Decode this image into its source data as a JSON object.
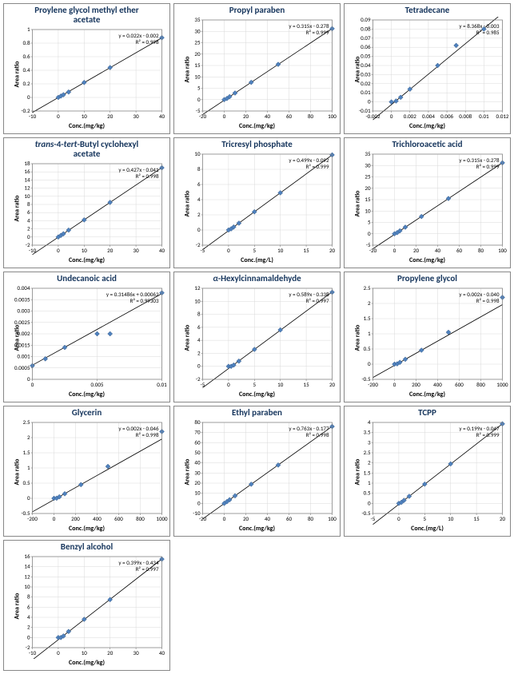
{
  "global": {
    "marker_color": "#4f81bd",
    "marker_border": "#385d8a",
    "line_color": "#000000",
    "axis_color": "#808080",
    "grid_color": "#d9d9d9",
    "tick_font_size": 7,
    "title_font_size": 11,
    "label_font_size": 8,
    "ylabel": "Area ratio",
    "marker_size": 3
  },
  "charts": [
    {
      "title": "Proylene glycol methyl ether\nacetate",
      "xlabel": "Conc.(mg/kg)",
      "equation": "y = 0.022x - 0.002",
      "r2": "R² = 0.998",
      "slope": 0.022,
      "intercept": -0.002,
      "xlim": [
        -10,
        40
      ],
      "ylim": [
        -0.2,
        1
      ],
      "xticks": [
        -10,
        0,
        10,
        20,
        30,
        40
      ],
      "yticks": [
        -0.2,
        0,
        0.2,
        0.4,
        0.6,
        0.8,
        1
      ],
      "points_x": [
        0,
        1,
        2,
        4,
        10,
        20,
        40
      ],
      "points_y": [
        0,
        0.02,
        0.04,
        0.08,
        0.22,
        0.44,
        0.88
      ]
    },
    {
      "title": "Propyl paraben",
      "xlabel": "Conc.(mg/kg)",
      "equation": "y = 0.315x - 0.278",
      "r2": "R² = 0.999",
      "slope": 0.315,
      "intercept": -0.278,
      "xlim": [
        -20,
        100
      ],
      "ylim": [
        -5,
        35
      ],
      "xticks": [
        -20,
        0,
        20,
        40,
        60,
        80,
        100
      ],
      "yticks": [
        -5,
        0,
        5,
        10,
        15,
        20,
        25,
        30,
        35
      ],
      "points_x": [
        0,
        2.5,
        5,
        10,
        25,
        50,
        100
      ],
      "points_y": [
        0,
        0.5,
        1.3,
        2.9,
        7.6,
        15.5,
        31.2
      ]
    },
    {
      "title": "Tetradecane",
      "xlabel": "Conc.(mg/kg)",
      "equation": "y = 8.368x - 0.003",
      "r2": "R² = 0.985",
      "slope": 8.368,
      "intercept": -0.003,
      "xlim": [
        -0.002,
        0.012
      ],
      "ylim": [
        -0.01,
        0.09
      ],
      "xticks": [
        -0.002,
        0,
        0.002,
        0.004,
        0.006,
        0.008,
        0.01,
        0.012
      ],
      "yticks": [
        -0.01,
        0,
        0.01,
        0.02,
        0.03,
        0.04,
        0.05,
        0.06,
        0.07,
        0.08,
        0.09
      ],
      "points_x": [
        0,
        0.0005,
        0.001,
        0.002,
        0.005,
        0.007,
        0.01
      ],
      "points_y": [
        0,
        0.001,
        0.005,
        0.014,
        0.04,
        0.062,
        0.08
      ]
    },
    {
      "title_html": "<span class='ital'>trans</span>-4-<span class='ital'>tert</span>-Butyl cyclohexyl\nacetate",
      "xlabel": "Conc.(mg/kg)",
      "equation": "y = 0.427x - 0.041",
      "r2": "R² = 0.998",
      "slope": 0.427,
      "intercept": -0.041,
      "xlim": [
        -10,
        40
      ],
      "ylim": [
        -2,
        18
      ],
      "xticks": [
        -10,
        0,
        10,
        20,
        30,
        40
      ],
      "yticks": [
        -2,
        0,
        2,
        4,
        6,
        8,
        10,
        12,
        14,
        16,
        18
      ],
      "points_x": [
        0,
        1,
        2,
        4,
        10,
        20,
        40
      ],
      "points_y": [
        0,
        0.4,
        0.8,
        1.7,
        4.2,
        8.5,
        17
      ]
    },
    {
      "title": "Tricresyl phosphate",
      "xlabel": "Conc.(mg/L)",
      "equation": "y = 0.499x - 0.092",
      "r2": "R² = 0.999",
      "slope": 0.499,
      "intercept": -0.092,
      "xlim": [
        -5,
        20
      ],
      "ylim": [
        -2,
        10
      ],
      "xticks": [
        -5,
        0,
        5,
        10,
        15,
        20
      ],
      "yticks": [
        -2,
        0,
        2,
        4,
        6,
        8,
        10
      ],
      "points_x": [
        0,
        0.5,
        1,
        2,
        5,
        10,
        20
      ],
      "points_y": [
        0,
        0.15,
        0.4,
        0.9,
        2.4,
        4.9,
        9.9
      ]
    },
    {
      "title": "Trichloroacetic acid",
      "xlabel": "Conc.(mg/kg)",
      "equation": "y = 0.315x - 0.278",
      "r2": "R² = 0.999",
      "slope": 0.315,
      "intercept": -0.278,
      "xlim": [
        -20,
        100
      ],
      "ylim": [
        -5,
        35
      ],
      "xticks": [
        -20,
        0,
        20,
        40,
        60,
        80,
        100
      ],
      "yticks": [
        -5,
        0,
        5,
        10,
        15,
        20,
        25,
        30,
        35
      ],
      "points_x": [
        0,
        2.5,
        5,
        10,
        25,
        50,
        100
      ],
      "points_y": [
        0,
        0.5,
        1.3,
        2.9,
        7.6,
        15.5,
        31.2
      ]
    },
    {
      "title": "Undecanoic acid",
      "xlabel": "Conc.(mg/kg)",
      "equation": "y = 0.31486x + 0.00062",
      "r2": "R² = 0.99303",
      "slope": 0.31486,
      "intercept": 0.00062,
      "xlim": [
        0,
        0.01
      ],
      "ylim": [
        0,
        0.004
      ],
      "xticks": [
        0,
        0.005,
        0.01
      ],
      "yticks": [
        0,
        0.0005,
        0.001,
        0.0015,
        0.002,
        0.0025,
        0.003,
        0.0035,
        0.004,
        0.0045
      ],
      "points_x": [
        0,
        0.001,
        0.0025,
        0.005,
        0.006,
        0.01
      ],
      "points_y": [
        0.0006,
        0.0009,
        0.0014,
        0.002,
        0.002,
        0.0038
      ]
    },
    {
      "title_html": "<span class='ital'>α</span>-Hexylcinnamaldehyde",
      "xlabel": "Conc.(mg/kg)",
      "equation": "y = 0.589x - 0.338",
      "r2": "R² = 0.997",
      "slope": 0.589,
      "intercept": -0.338,
      "xlim": [
        -5,
        20
      ],
      "ylim": [
        -2,
        12
      ],
      "xticks": [
        -5,
        0,
        5,
        10,
        15,
        20
      ],
      "yticks": [
        -2,
        0,
        2,
        4,
        6,
        8,
        10,
        12,
        14
      ],
      "points_x": [
        0,
        0.5,
        1,
        2,
        5,
        10,
        20
      ],
      "points_y": [
        0,
        0,
        0.2,
        0.8,
        2.6,
        5.6,
        11.4
      ]
    },
    {
      "title": "Propylene glycol",
      "xlabel": "Conc.(mg/kg)",
      "equation": "y = 0.002x - 0.040",
      "r2": "R² = 0.998",
      "slope": 0.002,
      "intercept": -0.04,
      "xlim": [
        -200,
        1000
      ],
      "ylim": [
        -0.5,
        2.5
      ],
      "xticks": [
        -200,
        0,
        200,
        400,
        600,
        800,
        1000
      ],
      "yticks": [
        -0.5,
        0,
        0.5,
        1,
        1.5,
        2,
        2.5
      ],
      "points_x": [
        0,
        25,
        50,
        100,
        250,
        500,
        1000
      ],
      "points_y": [
        0,
        0.01,
        0.06,
        0.16,
        0.46,
        1.05,
        2.2
      ]
    },
    {
      "title": "Glycerin",
      "xlabel": "Conc.(mg/kg)",
      "equation": "y = 0.002x - 0.046",
      "r2": "R² = 0.998",
      "slope": 0.002,
      "intercept": -0.046,
      "xlim": [
        -200,
        1000
      ],
      "ylim": [
        -0.5,
        2.5
      ],
      "xticks": [
        -200,
        0,
        200,
        400,
        600,
        800,
        1000
      ],
      "yticks": [
        -0.5,
        0,
        0.5,
        1,
        1.5,
        2,
        2.5
      ],
      "points_x": [
        0,
        25,
        50,
        100,
        250,
        500,
        1000
      ],
      "points_y": [
        0,
        0.004,
        0.05,
        0.15,
        0.45,
        1.05,
        2.2
      ]
    },
    {
      "title": "Ethyl paraben",
      "xlabel": "Conc.(mg/kg)",
      "equation": "y = 0.763x - 0.177",
      "r2": "R² = 0.998",
      "slope": 0.763,
      "intercept": -0.177,
      "xlim": [
        -20,
        100
      ],
      "ylim": [
        -10,
        80
      ],
      "xticks": [
        -20,
        0,
        20,
        40,
        60,
        80,
        100
      ],
      "yticks": [
        -10,
        0,
        10,
        20,
        30,
        40,
        50,
        60,
        70,
        80,
        90
      ],
      "points_x": [
        0,
        2.5,
        5,
        10,
        25,
        50,
        100
      ],
      "points_y": [
        0,
        1.7,
        3.6,
        7.5,
        18.9,
        37.9,
        76
      ]
    },
    {
      "title": "TCPP",
      "xlabel": "Conc.(mg/L)",
      "equation": "y = 0.199x - 0.047",
      "r2": "R² = 0.999",
      "slope": 0.199,
      "intercept": -0.047,
      "xlim": [
        -5,
        20
      ],
      "ylim": [
        -0.5,
        4.0
      ],
      "xticks": [
        -5,
        0,
        5,
        10,
        15,
        20
      ],
      "yticks": [
        -0.5,
        0,
        0.5,
        1,
        1.5,
        2,
        2.5,
        3,
        3.5,
        4,
        4.5
      ],
      "points_x": [
        0,
        0.5,
        1,
        2,
        5,
        10,
        20
      ],
      "points_y": [
        0,
        0.05,
        0.15,
        0.35,
        0.95,
        1.95,
        3.93
      ]
    },
    {
      "title": "Benzyl alcohol",
      "xlabel": "Conc.(mg/kg)",
      "equation": "y = 0.399x - 0.434",
      "r2": "R² = 0.997",
      "slope": 0.399,
      "intercept": -0.434,
      "xlim": [
        -10,
        40
      ],
      "ylim": [
        -2,
        16
      ],
      "xticks": [
        -10,
        0,
        10,
        20,
        30,
        40
      ],
      "yticks": [
        -2,
        0,
        2,
        4,
        6,
        8,
        10,
        12,
        14,
        16,
        18
      ],
      "points_x": [
        0,
        1,
        2,
        4,
        10,
        20,
        40
      ],
      "points_y": [
        0,
        0,
        0.3,
        1.2,
        3.6,
        7.5,
        15.5
      ]
    }
  ]
}
